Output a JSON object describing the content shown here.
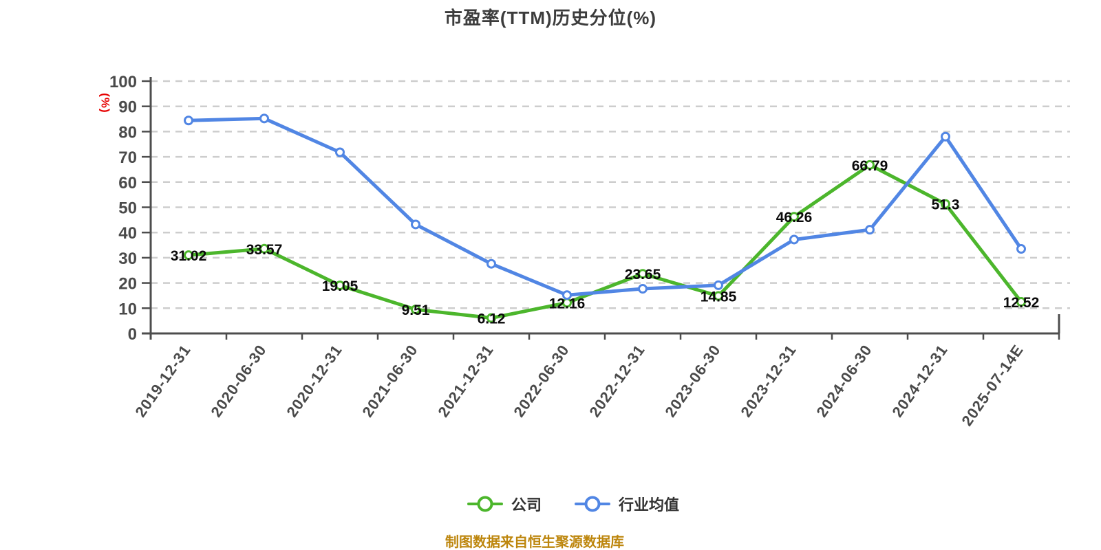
{
  "title": "市盈率(TTM)历史分位(%)",
  "y_axis_unit": "(%)",
  "source_note": "制图数据来自恒生聚源数据库",
  "chart_data": {
    "type": "line",
    "title": "市盈率(TTM)历史分位(%)",
    "categories": [
      "2019-12-31",
      "2020-06-30",
      "2020-12-31",
      "2021-06-30",
      "2021-12-31",
      "2022-06-30",
      "2022-12-31",
      "2023-06-30",
      "2023-12-31",
      "2024-06-30",
      "2024-12-31",
      "2025-07-14E"
    ],
    "series": [
      {
        "name": "公司",
        "id": "company",
        "color": "#4cb62c",
        "values": [
          31.02,
          33.57,
          19.05,
          9.51,
          6.12,
          12.16,
          23.65,
          14.85,
          46.26,
          66.79,
          51.3,
          12.52
        ],
        "labels_shown": true
      },
      {
        "name": "行业均值",
        "id": "industry-average",
        "color": "#5186e4",
        "values": [
          84.4,
          85.2,
          71.8,
          43.2,
          27.6,
          15.2,
          17.7,
          19.1,
          37.2,
          41.1,
          78.0,
          33.5
        ],
        "labels_shown": false
      }
    ],
    "xlabel": "",
    "ylabel": "(%)",
    "ylim": [
      0,
      100
    ],
    "ytick_interval": 10,
    "grid": "horizontal-dashed",
    "grid_color": "#cdcdcd",
    "axis_color": "#4d4d4d",
    "legend_position": "bottom",
    "marker": "circle-white-fill"
  }
}
